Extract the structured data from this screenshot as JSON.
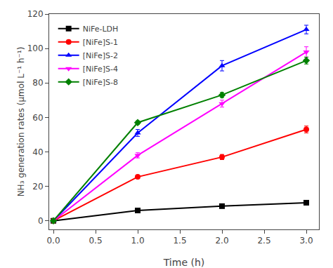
{
  "chart_data": {
    "type": "line",
    "xlabel": "Time (h)",
    "ylabel": "NH₃ generation rates (μmol L⁻¹ h⁻¹)",
    "series": [
      {
        "name": "NiFe-LDH",
        "color": "#000000",
        "marker": "square",
        "x": [
          0,
          1,
          2,
          3
        ],
        "values": [
          0,
          6.0,
          8.5,
          10.5
        ],
        "yerr": [
          0,
          0.5,
          0.5,
          1.2
        ]
      },
      {
        "name": "[NiFe]S-1",
        "color": "#ff0000",
        "marker": "circle",
        "x": [
          0,
          1,
          2,
          3
        ],
        "values": [
          0,
          25.5,
          37.0,
          53.0
        ],
        "yerr": [
          0,
          1.0,
          1.5,
          2.0
        ]
      },
      {
        "name": "[NiFe]S-2",
        "color": "#0000ff",
        "marker": "triangle-up",
        "x": [
          0,
          1,
          2,
          3
        ],
        "values": [
          0,
          51.0,
          90.0,
          111.0
        ],
        "yerr": [
          0,
          2.0,
          3.0,
          2.5
        ]
      },
      {
        "name": "[NiFe]S-4",
        "color": "#ff00ff",
        "marker": "triangle-down",
        "x": [
          0,
          1,
          2,
          3
        ],
        "values": [
          0,
          38.0,
          68.0,
          98.0
        ],
        "yerr": [
          0,
          1.5,
          2.0,
          3.0
        ]
      },
      {
        "name": "[NiFe]S-8",
        "color": "#008000",
        "marker": "diamond",
        "x": [
          0,
          1,
          2,
          3
        ],
        "values": [
          0,
          57.0,
          73.0,
          93.0
        ],
        "yerr": [
          0,
          1.0,
          1.5,
          2.0
        ]
      }
    ],
    "xlim": [
      -0.05,
      3.15
    ],
    "ylim": [
      -5,
      120
    ],
    "xticks": [
      {
        "value": 0,
        "label": "0.0"
      },
      0.5,
      {
        "value": 1,
        "label": "1.0"
      },
      1.5,
      {
        "value": 2,
        "label": "2.0"
      },
      2.5,
      {
        "value": 3,
        "label": "3.0"
      }
    ],
    "yticks": [
      0,
      20,
      40,
      60,
      80,
      100,
      120
    ],
    "legend": "upper left",
    "grid": false
  }
}
